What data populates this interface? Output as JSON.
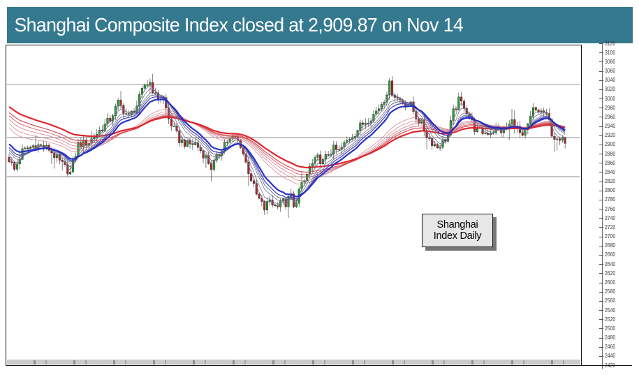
{
  "header": {
    "title": "Shanghai Composite Index closed at 2,909.87 on Nov 14",
    "bg_color": "#35798f",
    "text_color": "#ffffff"
  },
  "label_box": {
    "line1": "Shanghai",
    "line2": "Index Daily"
  },
  "chart_data": {
    "type": "candlestick",
    "title": "Shanghai Composite Index, daily candles with multiple moving averages",
    "last_close": 2909.87,
    "last_close_date": "Nov 14",
    "ylim": [
      2420,
      3120
    ],
    "ytick_step": 20,
    "grid": false,
    "hlines": [
      3030,
      2915,
      2830
    ],
    "date_axis": {
      "visible": true,
      "note": "tick labels illegible in source image"
    },
    "n_bars": 210,
    "noise": 9,
    "wick": 10,
    "up_color": "#27a22b",
    "down_color": "#b5242a",
    "wick_color": "#4a4a4a",
    "hline_color": "#8a8a8a",
    "prehistory_anchors": [
      [
        -70,
        3100
      ],
      [
        -45,
        3080
      ],
      [
        -25,
        3000
      ],
      [
        -10,
        2915
      ],
      [
        -3,
        2880
      ]
    ],
    "close_anchors": [
      [
        0,
        2868
      ],
      [
        2,
        2845
      ],
      [
        5,
        2885
      ],
      [
        10,
        2900
      ],
      [
        15,
        2890
      ],
      [
        19,
        2862
      ],
      [
        23,
        2838
      ],
      [
        26,
        2900
      ],
      [
        30,
        2905
      ],
      [
        34,
        2930
      ],
      [
        38,
        2955
      ],
      [
        41,
        2990
      ],
      [
        45,
        2960
      ],
      [
        48,
        2985
      ],
      [
        51,
        3030
      ],
      [
        53,
        3035
      ],
      [
        55,
        3005
      ],
      [
        58,
        3000
      ],
      [
        60,
        2955
      ],
      [
        64,
        2910
      ],
      [
        67,
        2900
      ],
      [
        70,
        2902
      ],
      [
        74,
        2872
      ],
      [
        76,
        2850
      ],
      [
        79,
        2880
      ],
      [
        81,
        2905
      ],
      [
        85,
        2915
      ],
      [
        87,
        2900
      ],
      [
        89,
        2860
      ],
      [
        91,
        2825
      ],
      [
        93,
        2790
      ],
      [
        96,
        2760
      ],
      [
        98,
        2780
      ],
      [
        100,
        2765
      ],
      [
        102,
        2780
      ],
      [
        104,
        2770
      ],
      [
        106,
        2790
      ],
      [
        107,
        2760
      ],
      [
        109,
        2800
      ],
      [
        111,
        2820
      ],
      [
        113,
        2850
      ],
      [
        116,
        2870
      ],
      [
        118,
        2862
      ],
      [
        120,
        2880
      ],
      [
        122,
        2890
      ],
      [
        124,
        2885
      ],
      [
        126,
        2900
      ],
      [
        128,
        2915
      ],
      [
        130,
        2925
      ],
      [
        132,
        2940
      ],
      [
        134,
        2950
      ],
      [
        137,
        2965
      ],
      [
        139,
        2980
      ],
      [
        141,
        3000
      ],
      [
        143,
        3030
      ],
      [
        144,
        3015
      ],
      [
        146,
        3000
      ],
      [
        149,
        2990
      ],
      [
        151,
        2985
      ],
      [
        153,
        2960
      ],
      [
        155,
        2945
      ],
      [
        157,
        2920
      ],
      [
        159,
        2905
      ],
      [
        161,
        2895
      ],
      [
        163,
        2905
      ],
      [
        165,
        2920
      ],
      [
        167,
        2970
      ],
      [
        169,
        2995
      ],
      [
        171,
        2985
      ],
      [
        173,
        2960
      ],
      [
        175,
        2935
      ],
      [
        176,
        2930
      ],
      [
        179,
        2925
      ],
      [
        181,
        2928
      ],
      [
        183,
        2932
      ],
      [
        185,
        2930
      ],
      [
        187,
        2935
      ],
      [
        189,
        2950
      ],
      [
        191,
        2935
      ],
      [
        193,
        2912
      ],
      [
        195,
        2940
      ],
      [
        197,
        2975
      ],
      [
        199,
        2972
      ],
      [
        201,
        2970
      ],
      [
        203,
        2950
      ],
      [
        204,
        2925
      ],
      [
        206,
        2905
      ],
      [
        208,
        2908
      ],
      [
        209,
        2910
      ]
    ],
    "gmma": {
      "short": [
        {
          "period": 3,
          "color": "#6b6b88",
          "width": 0.8
        },
        {
          "period": 5,
          "color": "#6b6b88",
          "width": 0.8
        },
        {
          "period": 8,
          "color": "#6b6b88",
          "width": 0.8
        },
        {
          "period": 10,
          "color": "#5d5d85",
          "width": 0.9
        },
        {
          "period": 12,
          "color": "#3c3fc0",
          "width": 1.3
        },
        {
          "period": 15,
          "color": "#2028c4",
          "width": 2.2
        }
      ],
      "long": [
        {
          "period": 30,
          "color": "#d4858d",
          "width": 0.8
        },
        {
          "period": 35,
          "color": "#d4858d",
          "width": 0.8
        },
        {
          "period": 40,
          "color": "#d0757e",
          "width": 0.8
        },
        {
          "period": 45,
          "color": "#cf5560",
          "width": 0.9
        },
        {
          "period": 50,
          "color": "#d8444c",
          "width": 1.2
        },
        {
          "period": 60,
          "color": "#dd1c24",
          "width": 2.2
        }
      ]
    }
  }
}
